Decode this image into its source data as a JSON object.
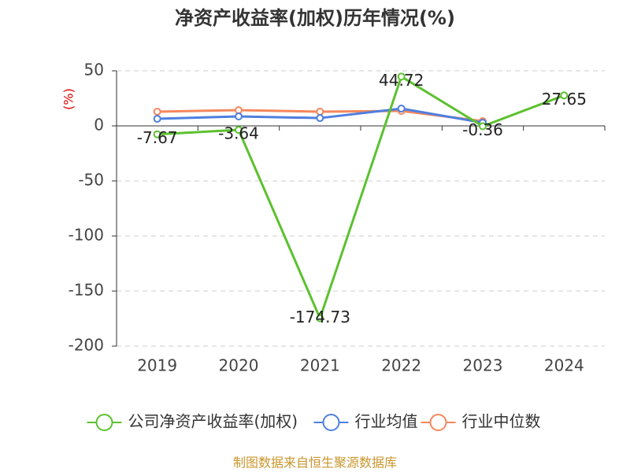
{
  "chart_data": {
    "type": "line",
    "title": "净资产收益率(加权)历年情况(%)",
    "y_label": "(%)",
    "source": "制图数据来自恒生聚源数据库",
    "categories": [
      "2019",
      "2020",
      "2021",
      "2022",
      "2023",
      "2024"
    ],
    "series": [
      {
        "name": "公司净资产收益率(加权)",
        "color": "#5cc12f",
        "values": [
          -7.67,
          -3.64,
          -174.73,
          44.72,
          -0.36,
          27.65
        ],
        "show_labels": true
      },
      {
        "name": "行业均值",
        "color": "#4e7fe0",
        "values": [
          6.4,
          8.6,
          7.1,
          15.7,
          2.9,
          null
        ]
      },
      {
        "name": "行业中位数",
        "color": "#f5875d",
        "values": [
          12.9,
          14.3,
          12.9,
          13.6,
          4.3,
          null
        ]
      }
    ],
    "ylim": [
      -200,
      50
    ],
    "yticks": [
      -200,
      -150,
      -100,
      -50,
      0,
      50
    ],
    "grid": true
  }
}
